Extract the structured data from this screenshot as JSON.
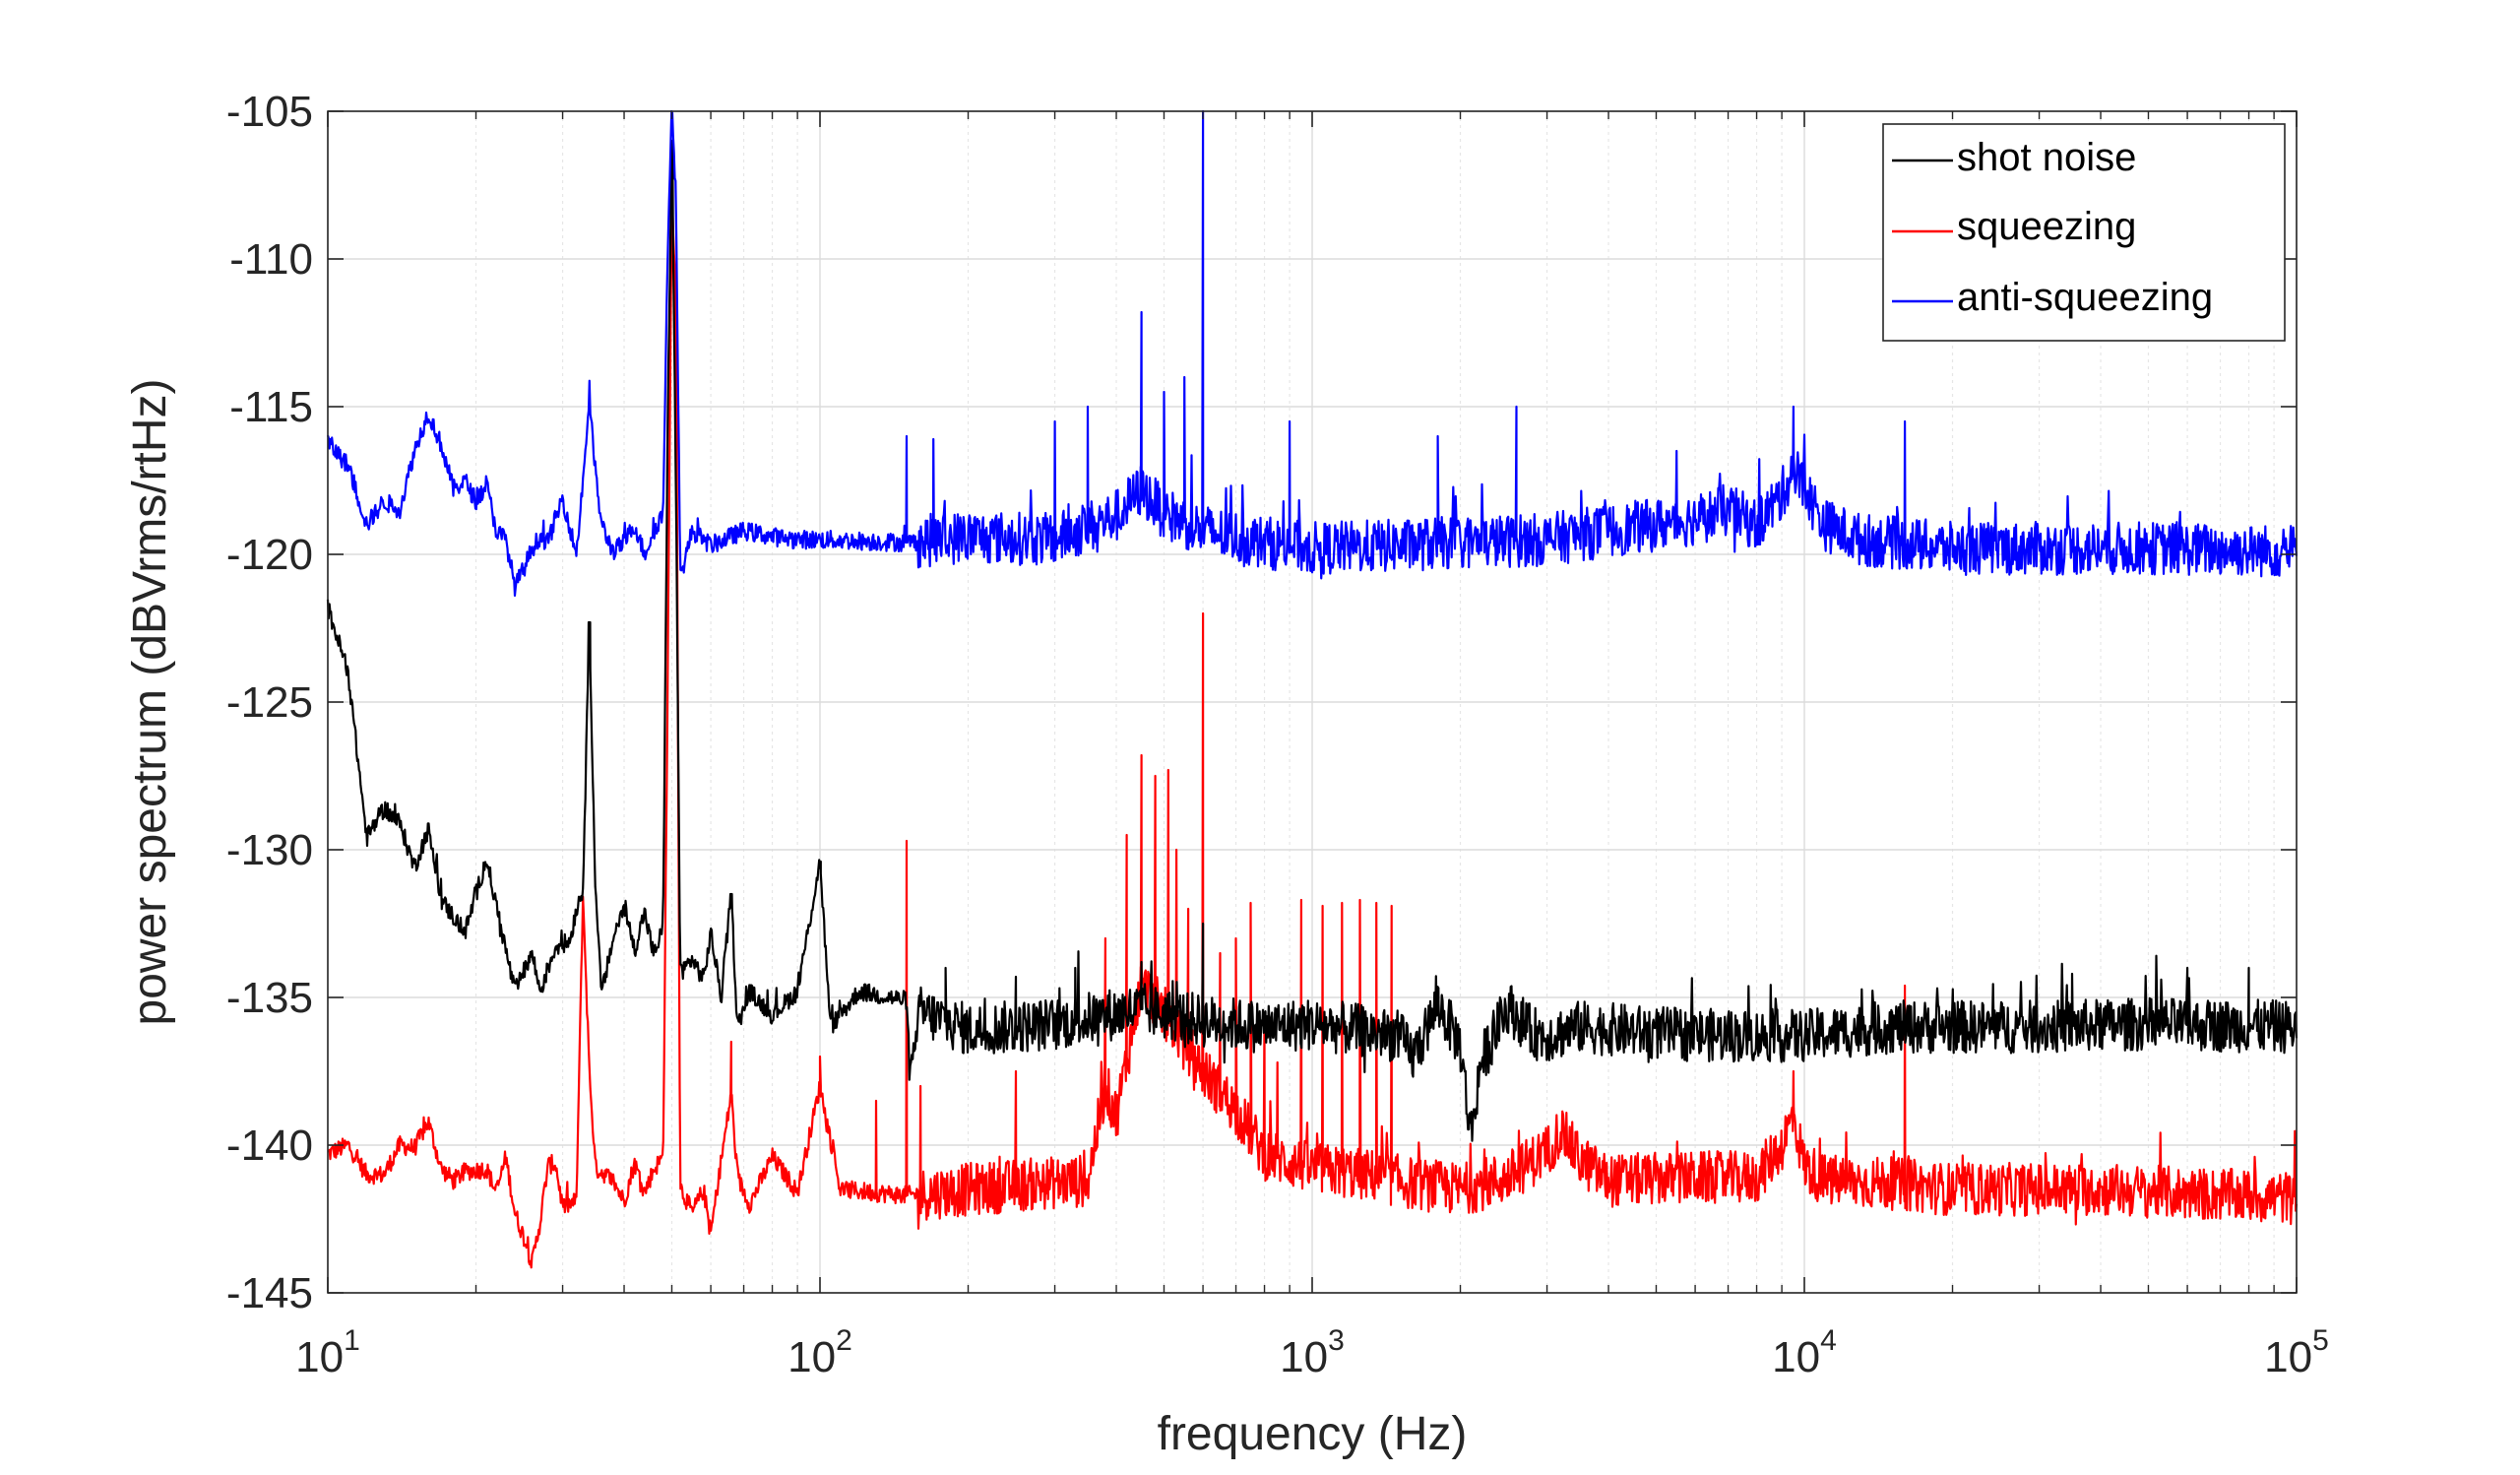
{
  "chart_data": {
    "type": "line",
    "title": "",
    "xlabel": "frequency (Hz)",
    "ylabel": "power spectrum (dBVrms/rtHz)",
    "x_scale": "log",
    "xlim": [
      10,
      100000
    ],
    "ylim": [
      -145,
      -105
    ],
    "grid": true,
    "legend_position": "top-right",
    "x_ticks": [
      {
        "base": "10",
        "exp": "1"
      },
      {
        "base": "10",
        "exp": "2"
      },
      {
        "base": "10",
        "exp": "3"
      },
      {
        "base": "10",
        "exp": "4"
      },
      {
        "base": "10",
        "exp": "5"
      }
    ],
    "y_ticks": [
      "-105",
      "-110",
      "-115",
      "-120",
      "-125",
      "-130",
      "-135",
      "-140",
      "-145"
    ],
    "series": [
      {
        "name": "shot noise",
        "color": "#000000",
        "baseline": -135.9,
        "noise": 0.9,
        "points": [
          [
            10,
            -121.8
          ],
          [
            11,
            -124.0
          ],
          [
            12,
            -129.6
          ],
          [
            13,
            -128.6
          ],
          [
            14,
            -129.1
          ],
          [
            15,
            -130.6
          ],
          [
            16,
            -129.3
          ],
          [
            17,
            -131.7
          ],
          [
            19,
            -132.8
          ],
          [
            21,
            -130.3
          ],
          [
            23,
            -133.4
          ],
          [
            24,
            -134.8
          ],
          [
            26,
            -133.5
          ],
          [
            27,
            -134.8
          ],
          [
            29,
            -133.3
          ],
          [
            31,
            -133.1
          ],
          [
            32,
            -132.0
          ],
          [
            33,
            -131.3
          ],
          [
            34,
            -122.3
          ],
          [
            35,
            -131.6
          ],
          [
            36,
            -134.9
          ],
          [
            38,
            -133.0
          ],
          [
            40,
            -131.9
          ],
          [
            42,
            -133.4
          ],
          [
            44,
            -132.1
          ],
          [
            46,
            -133.6
          ],
          [
            48,
            -132.6
          ],
          [
            49,
            -116.0
          ],
          [
            50,
            -106.0
          ],
          [
            51,
            -118.0
          ],
          [
            52,
            -134.2
          ],
          [
            55,
            -133.7
          ],
          [
            58,
            -134.4
          ],
          [
            60,
            -132.8
          ],
          [
            63,
            -135.0
          ],
          [
            66,
            -131.5
          ],
          [
            68,
            -136.0
          ],
          [
            72,
            -134.8
          ],
          [
            80,
            -135.6
          ],
          [
            90,
            -134.8
          ],
          [
            100,
            -130.4
          ],
          [
            105,
            -136.0
          ],
          [
            120,
            -134.8
          ],
          [
            150,
            -135.1
          ],
          [
            152,
            -137.6
          ],
          [
            160,
            -135.5
          ],
          [
            200,
            -136.1
          ],
          [
            300,
            -135.9
          ],
          [
            450,
            -135.4
          ],
          [
            600,
            -135.8
          ],
          [
            800,
            -136.0
          ],
          [
            1000,
            -135.9
          ],
          [
            1500,
            -136.3
          ],
          [
            1600,
            -137.0
          ],
          [
            1700,
            -136.2
          ],
          [
            1800,
            -135.2
          ],
          [
            2000,
            -136.6
          ],
          [
            2100,
            -139.7
          ],
          [
            2200,
            -137.2
          ],
          [
            2500,
            -135.3
          ],
          [
            2800,
            -136.2
          ],
          [
            3000,
            -136.3
          ],
          [
            3500,
            -136.0
          ],
          [
            5000,
            -136.2
          ],
          [
            7000,
            -136.3
          ],
          [
            10000,
            -136.3
          ],
          [
            15000,
            -136.0
          ],
          [
            20000,
            -136.0
          ],
          [
            30000,
            -136.0
          ],
          [
            50000,
            -135.9
          ],
          [
            100000,
            -136.0
          ]
        ],
        "spikes": [
          [
            34,
            -122.3
          ],
          [
            50,
            -106.0
          ],
          [
            66,
            -131.5
          ],
          [
            100,
            -130.4
          ],
          [
            180,
            -134.0
          ],
          [
            250,
            -134.3
          ],
          [
            330,
            -134.0
          ],
          [
            450,
            -133.8
          ],
          [
            600,
            -132.5
          ],
          [
            1800,
            -135.2
          ],
          [
            17000,
            -135.8
          ],
          [
            35000,
            -134.2
          ],
          [
            60000,
            -134.0
          ],
          [
            80000,
            -134.0
          ]
        ]
      },
      {
        "name": "squeezing",
        "color": "#ff0000",
        "baseline": -141.3,
        "noise": 0.9,
        "points": [
          [
            10,
            -140.3
          ],
          [
            11,
            -140.0
          ],
          [
            12,
            -141.0
          ],
          [
            13,
            -141.0
          ],
          [
            14,
            -140.0
          ],
          [
            15,
            -140.1
          ],
          [
            16,
            -139.2
          ],
          [
            17,
            -140.8
          ],
          [
            18,
            -141.2
          ],
          [
            19,
            -140.9
          ],
          [
            21,
            -140.8
          ],
          [
            22,
            -141.6
          ],
          [
            23,
            -140.4
          ],
          [
            24,
            -142.3
          ],
          [
            25,
            -143.1
          ],
          [
            26,
            -144.0
          ],
          [
            27,
            -142.6
          ],
          [
            28,
            -140.7
          ],
          [
            29,
            -140.6
          ],
          [
            30,
            -142.1
          ],
          [
            32,
            -141.9
          ],
          [
            33,
            -131.5
          ],
          [
            34,
            -137.5
          ],
          [
            35,
            -140.8
          ],
          [
            36,
            -140.9
          ],
          [
            38,
            -141.2
          ],
          [
            40,
            -141.9
          ],
          [
            42,
            -140.6
          ],
          [
            44,
            -141.6
          ],
          [
            46,
            -140.8
          ],
          [
            48,
            -140.4
          ],
          [
            49,
            -125.0
          ],
          [
            50,
            -107.8
          ],
          [
            51,
            -111.5
          ],
          [
            52,
            -141.4
          ],
          [
            55,
            -142.3
          ],
          [
            58,
            -141.5
          ],
          [
            60,
            -143.0
          ],
          [
            63,
            -140.5
          ],
          [
            66,
            -138.3
          ],
          [
            68,
            -141.1
          ],
          [
            72,
            -142.0
          ],
          [
            80,
            -140.4
          ],
          [
            90,
            -141.6
          ],
          [
            100,
            -138.0
          ],
          [
            110,
            -141.5
          ],
          [
            150,
            -141.7
          ],
          [
            200,
            -141.5
          ],
          [
            280,
            -141.3
          ],
          [
            350,
            -141.2
          ],
          [
            380,
            -138.0
          ],
          [
            400,
            -139.0
          ],
          [
            450,
            -134.5
          ],
          [
            500,
            -135.5
          ],
          [
            550,
            -136.5
          ],
          [
            600,
            -137.5
          ],
          [
            700,
            -138.8
          ],
          [
            800,
            -140.3
          ],
          [
            1000,
            -140.8
          ],
          [
            1300,
            -141.0
          ],
          [
            1600,
            -141.3
          ],
          [
            2000,
            -141.5
          ],
          [
            2500,
            -141.1
          ],
          [
            3000,
            -140.2
          ],
          [
            3200,
            -139.5
          ],
          [
            3500,
            -140.5
          ],
          [
            4000,
            -141.2
          ],
          [
            6000,
            -141.1
          ],
          [
            8000,
            -141.1
          ],
          [
            9000,
            -140.0
          ],
          [
            9500,
            -139.0
          ],
          [
            10000,
            -140.7
          ],
          [
            11000,
            -141.2
          ],
          [
            15000,
            -141.3
          ],
          [
            20000,
            -141.5
          ],
          [
            40000,
            -141.5
          ],
          [
            100000,
            -141.8
          ]
        ],
        "spikes": [
          [
            66,
            -136.5
          ],
          [
            100,
            -137.0
          ],
          [
            130,
            -138.5
          ],
          [
            150,
            -129.7
          ],
          [
            160,
            -138.0
          ],
          [
            250,
            -137.5
          ],
          [
            380,
            -133.0
          ],
          [
            420,
            -129.5
          ],
          [
            450,
            -126.8
          ],
          [
            480,
            -127.5
          ],
          [
            510,
            -127.3
          ],
          [
            530,
            -130.0
          ],
          [
            560,
            -132.0
          ],
          [
            600,
            -122.0
          ],
          [
            650,
            -133.5
          ],
          [
            700,
            -133.0
          ],
          [
            750,
            -131.8
          ],
          [
            800,
            -135.6
          ],
          [
            850,
            -137.2
          ],
          [
            950,
            -131.7
          ],
          [
            1050,
            -131.9
          ],
          [
            1150,
            -131.8
          ],
          [
            1250,
            -131.7
          ],
          [
            1350,
            -131.8
          ],
          [
            1450,
            -131.9
          ],
          [
            9500,
            -137.5
          ],
          [
            16000,
            -134.6
          ]
        ]
      },
      {
        "name": "anti-squeezing",
        "color": "#0000ff",
        "baseline": -119.6,
        "noise": 0.9,
        "points": [
          [
            10,
            -116.2
          ],
          [
            11,
            -117.0
          ],
          [
            12,
            -119.0
          ],
          [
            13,
            -118.2
          ],
          [
            14,
            -118.5
          ],
          [
            15,
            -116.5
          ],
          [
            16,
            -115.2
          ],
          [
            17,
            -116.3
          ],
          [
            18,
            -117.8
          ],
          [
            19,
            -117.5
          ],
          [
            20,
            -118.2
          ],
          [
            21,
            -117.6
          ],
          [
            22,
            -119.2
          ],
          [
            23,
            -119.5
          ],
          [
            24,
            -121.1
          ],
          [
            25,
            -120.5
          ],
          [
            26,
            -119.8
          ],
          [
            27,
            -119.4
          ],
          [
            28,
            -119.6
          ],
          [
            29,
            -118.8
          ],
          [
            30,
            -118.1
          ],
          [
            32,
            -120.0
          ],
          [
            33,
            -117.5
          ],
          [
            34,
            -114.7
          ],
          [
            35,
            -117.3
          ],
          [
            36,
            -119.0
          ],
          [
            38,
            -119.9
          ],
          [
            40,
            -119.6
          ],
          [
            42,
            -119.0
          ],
          [
            44,
            -120.0
          ],
          [
            46,
            -119.2
          ],
          [
            48,
            -118.6
          ],
          [
            49,
            -110.0
          ],
          [
            50,
            -104.5
          ],
          [
            51,
            -108.0
          ],
          [
            52,
            -120.8
          ],
          [
            55,
            -119.2
          ],
          [
            60,
            -119.7
          ],
          [
            70,
            -119.2
          ],
          [
            80,
            -119.4
          ],
          [
            90,
            -119.5
          ],
          [
            100,
            -119.5
          ],
          [
            150,
            -119.6
          ],
          [
            200,
            -119.4
          ],
          [
            300,
            -119.5
          ],
          [
            400,
            -118.7
          ],
          [
            450,
            -117.8
          ],
          [
            500,
            -118.6
          ],
          [
            600,
            -119.2
          ],
          [
            800,
            -119.6
          ],
          [
            1000,
            -119.8
          ],
          [
            1500,
            -119.7
          ],
          [
            2000,
            -119.6
          ],
          [
            3000,
            -119.5
          ],
          [
            4000,
            -119.2
          ],
          [
            5000,
            -119.0
          ],
          [
            6000,
            -118.8
          ],
          [
            7000,
            -118.5
          ],
          [
            8000,
            -119.0
          ],
          [
            9000,
            -118.0
          ],
          [
            9500,
            -117.0
          ],
          [
            10000,
            -117.8
          ],
          [
            11000,
            -119.0
          ],
          [
            13000,
            -119.5
          ],
          [
            20000,
            -119.8
          ],
          [
            50000,
            -119.8
          ],
          [
            100000,
            -119.9
          ]
        ],
        "spikes": [
          [
            150,
            -116.0
          ],
          [
            170,
            -116.1
          ],
          [
            300,
            -115.5
          ],
          [
            350,
            -115.0
          ],
          [
            450,
            -111.8
          ],
          [
            500,
            -114.5
          ],
          [
            550,
            -114.0
          ],
          [
            600,
            -104.5
          ],
          [
            900,
            -115.5
          ],
          [
            1800,
            -116.0
          ],
          [
            2600,
            -115.0
          ],
          [
            5500,
            -116.5
          ],
          [
            9500,
            -115.0
          ],
          [
            16000,
            -115.5
          ]
        ]
      }
    ]
  }
}
